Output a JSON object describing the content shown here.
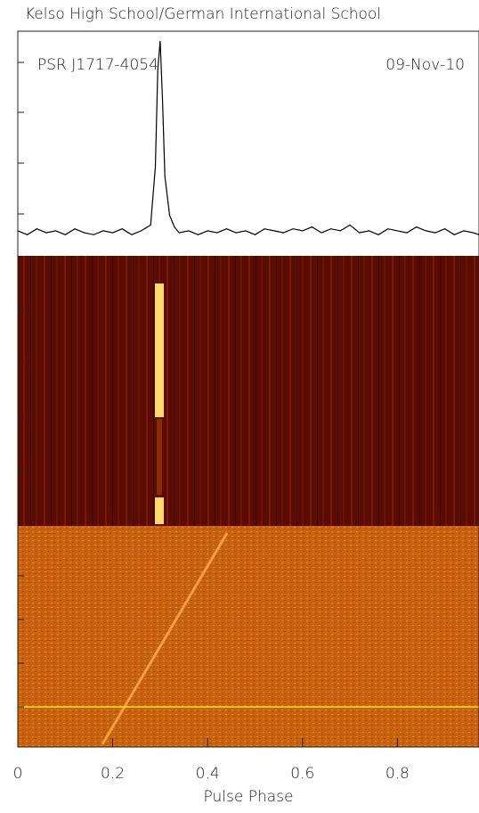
{
  "chart_data": {
    "type": "line",
    "title": "Kelso High School/German International School",
    "annotations": [
      "PSR J1717-4054",
      "09-Nov-10"
    ],
    "x_label": "Pulse Phase",
    "xlim": [
      0,
      0.972
    ],
    "xticks": [
      0,
      0.2,
      0.4,
      0.6,
      0.8
    ],
    "ylim": [
      -0.1,
      1.05
    ],
    "color": "#000000",
    "x": [
      0,
      0.02,
      0.04,
      0.06,
      0.08,
      0.1,
      0.12,
      0.14,
      0.16,
      0.18,
      0.2,
      0.22,
      0.24,
      0.26,
      0.28,
      0.29,
      0.295,
      0.3,
      0.305,
      0.31,
      0.315,
      0.32,
      0.33,
      0.34,
      0.36,
      0.38,
      0.4,
      0.42,
      0.44,
      0.46,
      0.48,
      0.5,
      0.52,
      0.54,
      0.56,
      0.58,
      0.6,
      0.62,
      0.64,
      0.66,
      0.68,
      0.7,
      0.72,
      0.74,
      0.76,
      0.78,
      0.8,
      0.82,
      0.84,
      0.86,
      0.88,
      0.9,
      0.92,
      0.94,
      0.96,
      0.972
    ],
    "values": [
      0.02,
      0.0,
      0.03,
      0.01,
      0.02,
      0.0,
      0.03,
      0.01,
      0.0,
      0.02,
      0.01,
      0.03,
      0.0,
      0.02,
      0.05,
      0.35,
      0.85,
      1.0,
      0.7,
      0.3,
      0.2,
      0.1,
      0.04,
      0.01,
      0.02,
      0.0,
      0.02,
      0.01,
      0.03,
      0.01,
      0.02,
      0.0,
      0.03,
      0.02,
      0.01,
      0.03,
      0.02,
      0.04,
      0.01,
      0.03,
      0.02,
      0.05,
      0.01,
      0.02,
      0.0,
      0.03,
      0.02,
      0.01,
      0.04,
      0.02,
      0.01,
      0.03,
      0.0,
      0.02,
      0.01,
      0.0
    ]
  }
}
